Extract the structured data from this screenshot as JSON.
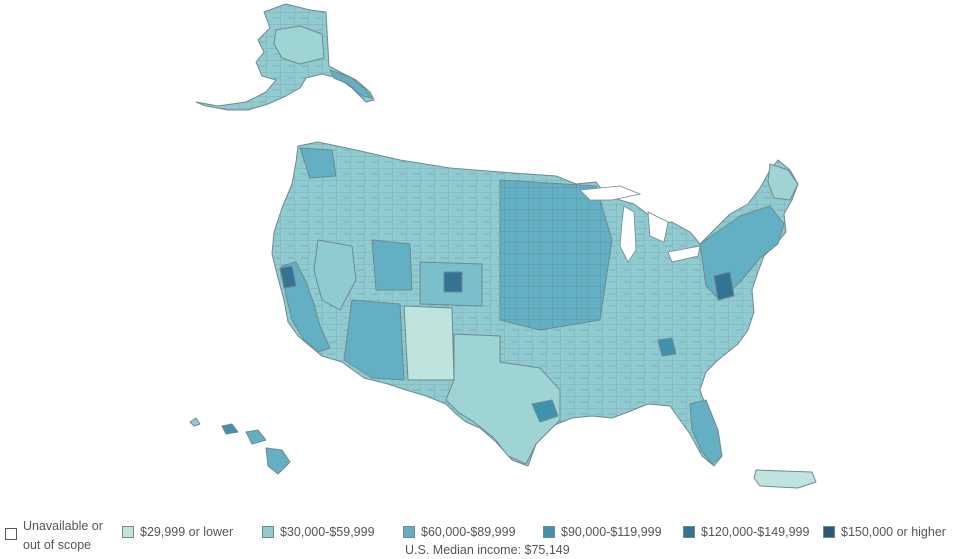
{
  "legend": {
    "unavailable": "Unavailable or out of scope",
    "items": [
      {
        "label": "$29,999 or lower",
        "color": "#bfe3dd"
      },
      {
        "label": "$30,000-$59,999",
        "color": "#8fcbd0"
      },
      {
        "label": "$60,000-$89,999",
        "color": "#63b0c4"
      },
      {
        "label": "$90,000-$119,999",
        "color": "#3f92ad"
      },
      {
        "label": "$120,000-$149,999",
        "color": "#347393"
      },
      {
        "label": "$150,000 or higher",
        "color": "#2c5778"
      }
    ]
  },
  "median": "U.S. Median income: $75,149",
  "colors": {
    "border": "#6e8a90",
    "base": "#8fcbd0",
    "light": "#bfe3dd",
    "mid": "#63b0c4",
    "dark": "#3f92ad",
    "darker": "#347393",
    "darkest": "#2c5778"
  }
}
